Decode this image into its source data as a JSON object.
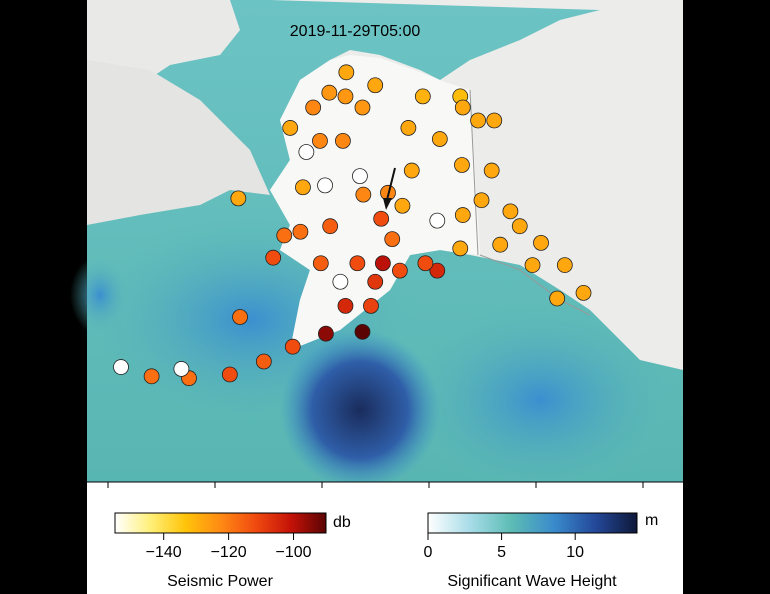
{
  "timestamp": "2019-11-29T05:00",
  "seismic_colorbar": {
    "title": "Seismic Power",
    "unit": "db",
    "lim": [
      -155,
      -90
    ],
    "ticks": [
      {
        "value": -140,
        "label": "−140"
      },
      {
        "value": -120,
        "label": "−120"
      },
      {
        "value": -100,
        "label": "−100"
      }
    ],
    "colors": [
      "#ffffff",
      "#fff07a",
      "#ffc40a",
      "#ff8a14",
      "#f04a10",
      "#c41208",
      "#5a0404"
    ]
  },
  "wave_colorbar": {
    "title": "Significant Wave Height",
    "unit": "m",
    "lim": [
      0,
      14.2
    ],
    "ticks": [
      0,
      5,
      10
    ],
    "colors": [
      "#ffffff",
      "#a8dce8",
      "#5cbcb4",
      "#3a8ccc",
      "#24489a",
      "#0e1838"
    ]
  },
  "map": {
    "lon_range": [
      -190,
      -119.9
    ],
    "lat_range": [
      48,
      74
    ]
  },
  "stations": {
    "lon": [
      -159.5,
      -161.5,
      -163.4,
      -156.1,
      -150.5,
      -157.6,
      -166.1,
      -164.2,
      -159.9,
      -152.2,
      -146.1,
      -144.0,
      -148.5,
      -157.9,
      -151.8,
      -145.9,
      -142.4,
      -162.0,
      -157.5,
      -152.9,
      -148.8,
      -143.6,
      -140.2,
      -164.9,
      -161.4,
      -155.4,
      -154.1,
      -146.1,
      -141.4,
      -136.6,
      -137.6,
      -133.8,
      -134.7,
      -131.6,
      -162.5,
      -160.2,
      -158.2,
      -155.2,
      -153.2,
      -148.8,
      -156.1,
      -159.6,
      -156.6,
      -161.9,
      -157.6,
      -165.8,
      -169.2,
      -173.2,
      -178.0,
      -178.9,
      -182.4,
      -186.0,
      -172.0,
      -172.2,
      -168.1,
      -166.8,
      -162.6,
      -159.6,
      -145.8,
      -142.1,
      -154.6,
      -145.8,
      -150.2,
      -139.1,
      -164.6
    ],
    "lat": [
      70.1,
      69.0,
      68.2,
      69.4,
      68.8,
      68.2,
      67.1,
      65.8,
      66.4,
      67.1,
      68.8,
      67.5,
      66.5,
      64.5,
      64.8,
      65.1,
      64.8,
      64.0,
      63.5,
      62.9,
      62.1,
      63.2,
      62.6,
      61.5,
      61.8,
      62.2,
      61.1,
      60.6,
      60.8,
      60.9,
      59.7,
      59.7,
      57.9,
      58.2,
      59.8,
      58.8,
      59.8,
      59.8,
      59.4,
      59.4,
      58.8,
      57.5,
      57.5,
      56.0,
      56.1,
      55.3,
      54.5,
      53.8,
      53.6,
      54.1,
      53.7,
      54.2,
      56.9,
      63.3,
      60.1,
      61.3,
      66.4,
      68.8,
      68.2,
      67.5,
      63.6,
      62.4,
      59.8,
      61.8,
      63.9
    ],
    "power": [
      -128,
      -125,
      -122,
      -128,
      -130,
      -125,
      -128,
      -155,
      -122,
      -128,
      -132,
      -128,
      -128,
      -155,
      -128,
      -128,
      -128,
      -155,
      -122,
      -128,
      -155,
      -128,
      -128,
      -118,
      -115,
      -112,
      -118,
      -128,
      -128,
      -128,
      -128,
      -128,
      -128,
      -128,
      -115,
      -155,
      -112,
      -100,
      -112,
      -105,
      -108,
      -105,
      -110,
      -95,
      -90,
      -112,
      -115,
      -112,
      -118,
      -155,
      -118,
      -155,
      -118,
      -128,
      -112,
      -118,
      -122,
      -125,
      -128,
      -128,
      -122,
      -128,
      -112,
      -128,
      -128
    ]
  }
}
